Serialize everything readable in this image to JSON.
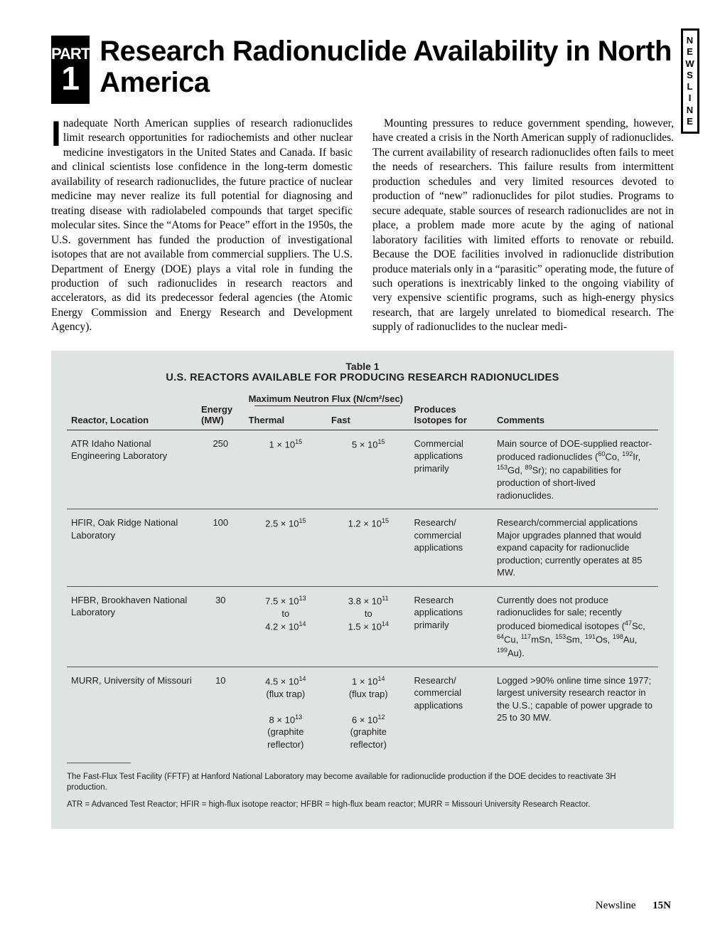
{
  "sideTab": "NEWSLINE",
  "partBadge": {
    "word": "PART",
    "number": "1"
  },
  "title": "Research Radionuclide Availability in North America",
  "body": {
    "dropcap": "I",
    "para1_after_dropcap": "nadequate North American supplies of research radionuclides limit research opportunities for radiochemists and other nuclear medicine investigators in the United States and Canada. If basic and clinical scientists lose confidence in the long-term domestic availability of research radionuclides, the future practice of nuclear medicine may never realize its full potential for diagnosing and treating disease with radiolabeled compounds that target specific molecular sites. Since the “Atoms for Peace” effort in the 1950s, the U.S. government has funded the production of investigational isotopes that are not available from commercial suppliers. The U.S. Department of Energy (DOE) plays a vital role in funding the production of such radionuclides in research reactors and accelerators, as did its predecessor federal agencies (the Atomic Energy Commission and Energy Research and Development Agency).",
    "para2": "Mounting pressures to reduce government spending, however, have created a crisis in the North American supply of radionuclides. The current availability of research radionuclides often fails to meet the needs of researchers. This failure results from intermittent production schedules and very limited resources devoted to production of “new” radionuclides for pilot studies. Programs to secure adequate, stable sources of research radionuclides are not in place, a problem made more acute by the aging of national laboratory facilities with limited efforts to renovate or rebuild. Because the DOE facilities involved in radionuclide distribution produce materials only in a “parasitic” operating mode, the future of such operations is inextricably linked to the ongoing viability of very expensive scientific programs, such as high-energy physics research, that are largely unrelated to biomedical research. The supply of radionuclides to the nuclear medi-"
  },
  "table": {
    "label": "Table 1",
    "title": "U.S. REACTORS AVAILABLE FOR PRODUCING RESEARCH RADIONUCLIDES",
    "headers": {
      "reactor": "Reactor, Location",
      "energy": "Energy (MW)",
      "fluxGroup": "Maximum Neutron Flux (N/cm²/sec)",
      "thermal": "Thermal",
      "fast": "Fast",
      "produces": "Produces Isotopes for",
      "comments": "Comments"
    },
    "rows": [
      {
        "reactor": "ATR Idaho National Engineering Laboratory",
        "energy": "250",
        "thermal_html": "1 × 10<span class='sup'>15</span>",
        "fast_html": "5 × 10<span class='sup'>15</span>",
        "produces": "Commercial applications primarily",
        "comments_html": "Main source of DOE-supplied reactor-produced radionuclides (<span class='sup'>60</span>Co, <span class='sup'>192</span>Ir, <span class='sup'>153</span>Gd, <span class='sup'>89</span>Sr); no capabilities for production of short-lived radionuclides."
      },
      {
        "reactor": "HFIR, Oak Ridge National Laboratory",
        "energy": "100",
        "thermal_html": "2.5 × 10<span class='sup'>15</span>",
        "fast_html": "1.2 × 10<span class='sup'>15</span>",
        "produces": "Research/ commercial applications",
        "comments_html": "Research/commercial applications Major upgrades planned that would expand capacity for radionuclide production; currently operates at 85 MW."
      },
      {
        "reactor": "HFBR, Brookhaven National Laboratory",
        "energy": "30",
        "thermal_html": "7.5 × 10<span class='sup'>13</span><br>to<br>4.2 × 10<span class='sup'>14</span>",
        "fast_html": "3.8 × 10<span class='sup'>11</span><br>to<br>1.5 × 10<span class='sup'>14</span>",
        "produces": "Research applications primarily",
        "comments_html": "Currently does not produce radionuclides for sale; recently produced biomedical isotopes (<span class='sup'>47</span>Sc, <span class='sup'>64</span>Cu, <span class='sup'>117</span>mSn, <span class='sup'>153</span>Sm, <span class='sup'>191</span>Os, <span class='sup'>198</span>Au, <span class='sup'>199</span>Au)."
      },
      {
        "reactor": "MURR, University of Missouri",
        "energy": "10",
        "thermal_html": "4.5 × 10<span class='sup'>14</span><br>(flux trap)<br><br>8 × 10<span class='sup'>13</span><br>(graphite reflector)",
        "fast_html": "1 × 10<span class='sup'>14</span><br>(flux trap)<br><br>6 × 10<span class='sup'>12</span><br>(graphite reflector)",
        "produces": "Research/ commercial applications",
        "comments_html": "Logged >90% online time since 1977; largest university research reactor in the U.S.; capable of power upgrade to 25 to 30 MW."
      }
    ],
    "footnote1_html": "The Fast-Flux Test Facility (FFTF) at Hanford National Laboratory may become available for radionuclide production if the DOE decides to reactivate <span class='sup'>3</span>H production.",
    "footnote2": "ATR = Advanced Test Reactor; HFIR = high-flux isotope reactor; HFBR = high-flux beam reactor; MURR = Missouri University Research Reactor."
  },
  "footer": {
    "label": "Newsline",
    "page": "15N"
  }
}
